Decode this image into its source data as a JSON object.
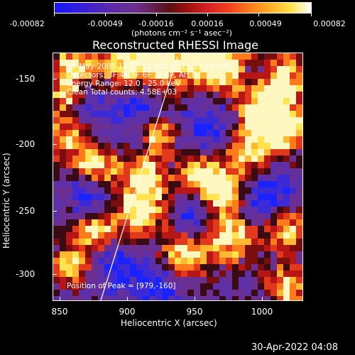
{
  "colorbar": {
    "tick_labels": [
      "-0.00082",
      "-0.00049",
      "-0.00016",
      "0.00016",
      "0.00049",
      "0.00082"
    ],
    "units": "(photons cm⁻² s⁻¹ asec⁻²)"
  },
  "title": "Reconstructed RHESSI Image",
  "axes": {
    "xlabel": "Heliocentric X (arcsec)",
    "ylabel": "Heliocentric Y (arcsec)",
    "x_ticks": [
      "850",
      "900",
      "950",
      "1000"
    ],
    "y_ticks": [
      "-150",
      "-200",
      "-250",
      "-300"
    ],
    "xlim": [
      840,
      1030
    ],
    "ylim": [
      -322,
      -131
    ]
  },
  "info": {
    "time": "19-May-2005 11:53:12.000 to 11:57:28.000",
    "detectors": "Detectors: 3F 4F 5F 6F 7F 8F, Att 0",
    "energy": "Energy Range: 12.0 - 25.0 keV",
    "clean": "Clean    Total counts: 4.58E+03",
    "peak": "Position of Peak = [979,-160]"
  },
  "footer": "30-Apr-2022 04:08"
}
